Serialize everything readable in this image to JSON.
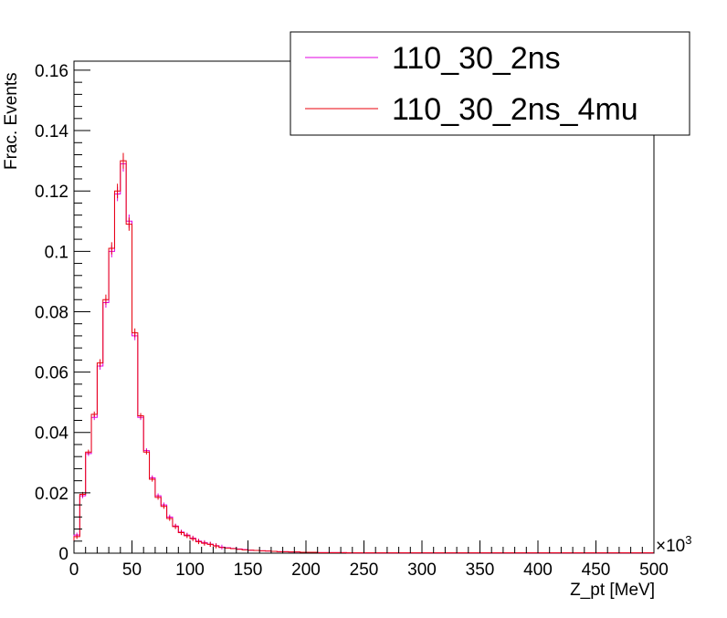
{
  "chart_data": {
    "type": "line",
    "step": true,
    "xlabel": "Z_pt [MeV]",
    "ylabel": "Frac. Events",
    "x_multiplier_label": "×10",
    "x_multiplier_exp": "3",
    "xlim": [
      0,
      500
    ],
    "ylim": [
      0,
      0.163
    ],
    "x_ticks": [
      0,
      50,
      100,
      150,
      200,
      250,
      300,
      350,
      400,
      450,
      500
    ],
    "x_tick_labels": [
      "0",
      "50",
      "100",
      "150",
      "200",
      "250",
      "300",
      "350",
      "400",
      "450",
      "500"
    ],
    "y_ticks": [
      0,
      0.02,
      0.04,
      0.06,
      0.08,
      0.1,
      0.12,
      0.14,
      0.16
    ],
    "y_tick_labels": [
      "0",
      "0.02",
      "0.04",
      "0.06",
      "0.08",
      "0.1",
      "0.12",
      "0.14",
      "0.16"
    ],
    "grid": false,
    "legend_position": "top-right",
    "bin_width": 5,
    "series": [
      {
        "name": "110_30_2ns",
        "color": "#e000e0",
        "values": [
          0.006,
          0.019,
          0.033,
          0.045,
          0.062,
          0.083,
          0.1,
          0.119,
          0.129,
          0.11,
          0.072,
          0.045,
          0.034,
          0.025,
          0.019,
          0.016,
          0.012,
          0.009,
          0.007,
          0.006,
          0.005,
          0.004,
          0.0035,
          0.003,
          0.0025,
          0.002,
          0.0018,
          0.0016,
          0.0014,
          0.0012,
          0.001,
          0.0009,
          0.0008,
          0.0007,
          0.0006,
          0.0005,
          0.0005,
          0.0004,
          0.0004,
          0.0003,
          0.0003,
          0.0003,
          0.0002,
          0.0002,
          0.0002,
          0.0002,
          0.0002,
          0.0001,
          0.0001,
          0.0001,
          0.0001,
          0.0001,
          0.0001,
          0.0001,
          0.0001,
          0.0001,
          0.0001,
          0.0001,
          0.0001,
          0.0001,
          0.0001,
          0.0001,
          0.0001,
          0.0001,
          0.0001,
          0.0001,
          0.0001,
          0.0001,
          0.0001,
          0.0001,
          0.0001,
          0.0001,
          0.0001,
          0.0001,
          0.0001,
          0.0001,
          0.0001,
          0.0001,
          0.0001,
          0.0001,
          0.0001,
          0.0001,
          0.0001,
          0.0001,
          0.0001,
          0.0001,
          0.0001,
          0.0001,
          0.0001,
          0.0001,
          0.0001,
          0.0001,
          0.0001,
          0.0001,
          0.0001,
          0.0001,
          0.0001,
          0.0001,
          0.0001,
          0.0001
        ]
      },
      {
        "name": "110_30_2ns_4mu",
        "color": "#e8000b",
        "values": [
          0.0055,
          0.0195,
          0.0335,
          0.046,
          0.063,
          0.084,
          0.101,
          0.12,
          0.13,
          0.109,
          0.073,
          0.0455,
          0.0335,
          0.0245,
          0.0185,
          0.0155,
          0.0115,
          0.0088,
          0.0068,
          0.0058,
          0.0048,
          0.0038,
          0.0033,
          0.0029,
          0.0024,
          0.0019,
          0.0017,
          0.0015,
          0.0013,
          0.0011,
          0.001,
          0.0009,
          0.0008,
          0.0007,
          0.0006,
          0.0005,
          0.0005,
          0.0004,
          0.0004,
          0.0003,
          0.0003,
          0.0003,
          0.0002,
          0.0002,
          0.0002,
          0.0002,
          0.0002,
          0.0001,
          0.0001,
          0.0001,
          0.0001,
          0.0001,
          0.0001,
          0.0001,
          0.0001,
          0.0001,
          0.0001,
          0.0001,
          0.0001,
          0.0001,
          0.0001,
          0.0001,
          0.0001,
          0.0001,
          0.0001,
          0.0001,
          0.0001,
          0.0001,
          0.0001,
          0.0001,
          0.0001,
          0.0001,
          0.0001,
          0.0001,
          0.0001,
          0.0001,
          0.0001,
          0.0001,
          0.0001,
          0.0001,
          0.0001,
          0.0001,
          0.0001,
          0.0001,
          0.0001,
          0.0001,
          0.0001,
          0.0001,
          0.0001,
          0.0001,
          0.0001,
          0.0001,
          0.0001,
          0.0001,
          0.0001,
          0.0001,
          0.0001,
          0.0001,
          0.0001,
          0.0001
        ]
      }
    ]
  }
}
